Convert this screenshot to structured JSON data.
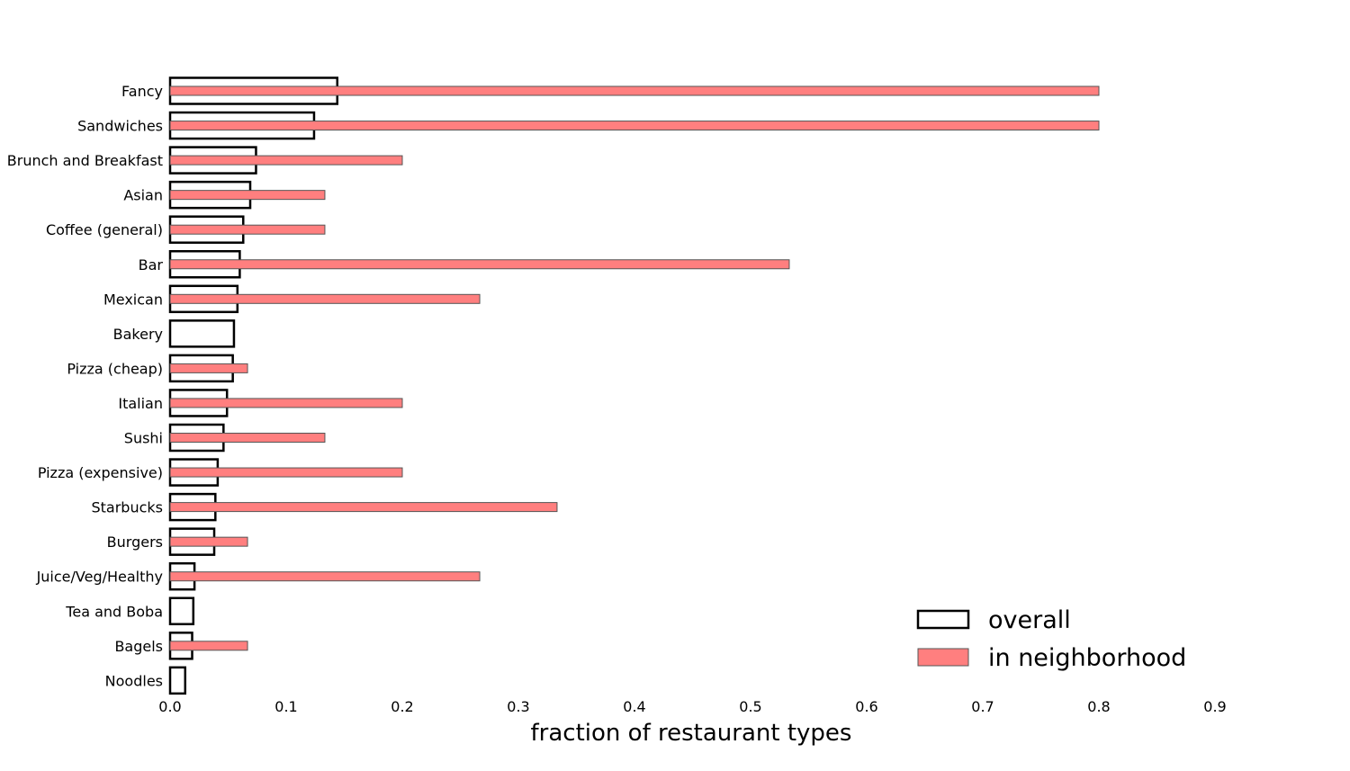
{
  "chart_data": {
    "type": "bar",
    "orientation": "horizontal",
    "categories": [
      "Fancy",
      "Sandwiches",
      "Brunch and Breakfast",
      "Asian",
      "Coffee (general)",
      "Bar",
      "Mexican",
      "Bakery",
      "Pizza (cheap)",
      "Italian",
      "Sushi",
      "Pizza (expensive)",
      "Starbucks",
      "Burgers",
      "Juice/Veg/Healthy",
      "Tea and Boba",
      "Bagels",
      "Noodles"
    ],
    "series": [
      {
        "name": "overall",
        "values": [
          0.144,
          0.124,
          0.074,
          0.069,
          0.063,
          0.06,
          0.058,
          0.055,
          0.054,
          0.049,
          0.046,
          0.041,
          0.039,
          0.038,
          0.021,
          0.02,
          0.019,
          0.013
        ],
        "style": "outline",
        "color": "#000000"
      },
      {
        "name": "in neighborhood",
        "values": [
          0.8,
          0.8,
          0.2,
          0.1333,
          0.1333,
          0.5333,
          0.2667,
          0.0,
          0.0667,
          0.2,
          0.1333,
          0.2,
          0.3333,
          0.0667,
          0.2667,
          0.0,
          0.0667,
          0.0
        ],
        "style": "filled",
        "color": "#ff7f7f"
      }
    ],
    "xlabel": "fraction of restaurant types",
    "ylabel": "",
    "title": "",
    "xlim": [
      0.0,
      0.9
    ],
    "xticks": [
      "0.0",
      "0.1",
      "0.2",
      "0.3",
      "0.4",
      "0.5",
      "0.6",
      "0.7",
      "0.8",
      "0.9"
    ],
    "grid": false,
    "legend_position": "bottom-right"
  }
}
